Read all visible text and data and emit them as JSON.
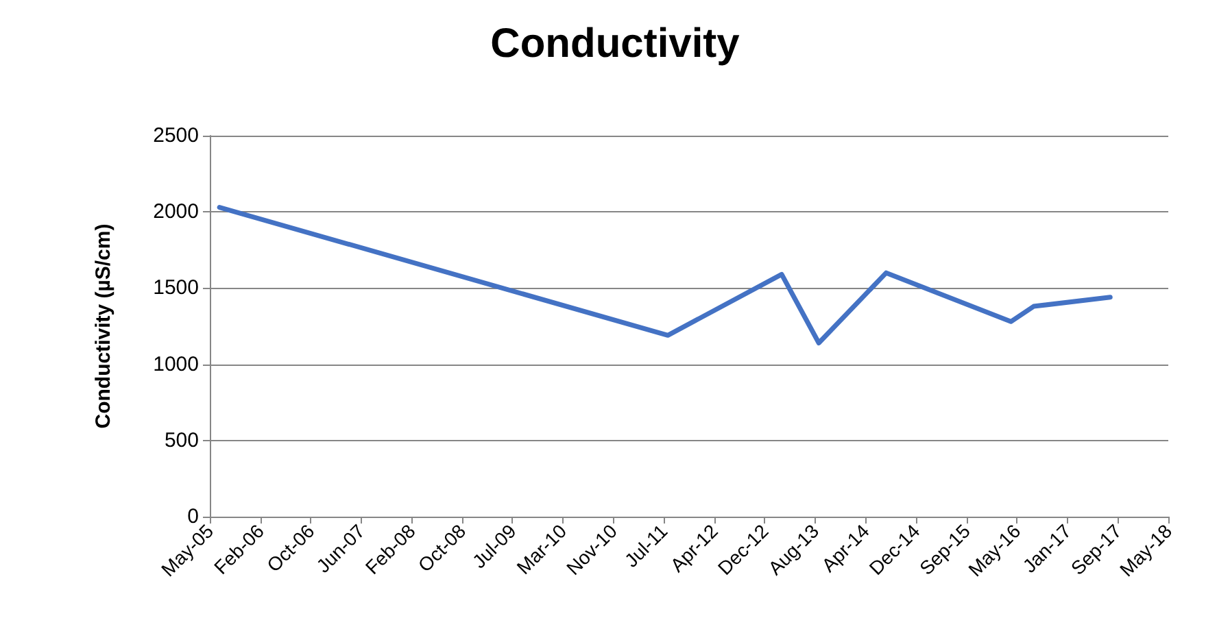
{
  "chart_data": {
    "type": "line",
    "title": "Conductivity",
    "ylabel": "Conductivity (µS/cm)",
    "x": [
      "2005-07-15",
      "2011-08-15",
      "2013-03-01",
      "2013-09-01",
      "2014-08-01",
      "2016-04-10",
      "2016-08-01",
      "2017-08-15"
    ],
    "series": [
      {
        "color": "#4472c4",
        "values": [
          2030,
          1190,
          1590,
          1140,
          1600,
          1280,
          1380,
          1440
        ]
      }
    ],
    "xlim": [
      "2005-05-28",
      "2018-05-30"
    ],
    "xticks": [
      {
        "value": "2005-05-28",
        "label": "May-05"
      },
      {
        "value": "2006-02-02",
        "label": "Feb-06"
      },
      {
        "value": "2006-10-10",
        "label": "Oct-06"
      },
      {
        "value": "2007-06-17",
        "label": "Jun-07"
      },
      {
        "value": "2008-02-22",
        "label": "Feb-08"
      },
      {
        "value": "2008-10-29",
        "label": "Oct-08"
      },
      {
        "value": "2009-07-06",
        "label": "Jul-09"
      },
      {
        "value": "2010-03-13",
        "label": "Mar-10"
      },
      {
        "value": "2010-11-18",
        "label": "Nov-10"
      },
      {
        "value": "2011-07-26",
        "label": "Jul-11"
      },
      {
        "value": "2012-04-01",
        "label": "Apr-12"
      },
      {
        "value": "2012-12-07",
        "label": "Dec-12"
      },
      {
        "value": "2013-08-14",
        "label": "Aug-13"
      },
      {
        "value": "2014-04-21",
        "label": "Apr-14"
      },
      {
        "value": "2014-12-27",
        "label": "Dec-14"
      },
      {
        "value": "2015-09-03",
        "label": "Sep-15"
      },
      {
        "value": "2016-05-10",
        "label": "May-16"
      },
      {
        "value": "2017-01-15",
        "label": "Jan-17"
      },
      {
        "value": "2017-09-22",
        "label": "Sep-17"
      },
      {
        "value": "2018-05-30",
        "label": "May-18"
      }
    ],
    "ylim": [
      0,
      2500
    ],
    "yticks": [
      0,
      500,
      1000,
      1500,
      2000,
      2500
    ],
    "grid": "y",
    "marker": "none",
    "line_style": "solid"
  }
}
